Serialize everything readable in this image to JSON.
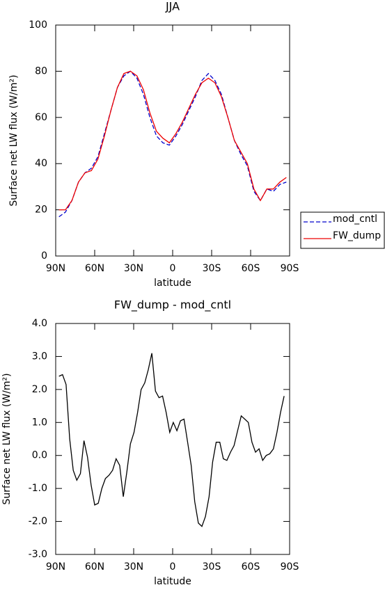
{
  "chart_data": [
    {
      "type": "line",
      "title": "JJA",
      "x_label": "latitude",
      "y_label": "Surface net LW flux (W/m²)",
      "x": [
        87.5,
        82.5,
        77.5,
        72.5,
        67.5,
        62.5,
        57.5,
        52.5,
        47.5,
        42.5,
        37.5,
        32.5,
        27.5,
        22.5,
        17.5,
        12.5,
        7.5,
        2.5,
        -2.5,
        -7.5,
        -12.5,
        -17.5,
        -22.5,
        -27.5,
        -32.5,
        -37.5,
        -42.5,
        -47.5,
        -52.5,
        -57.5,
        -62.5,
        -67.5,
        -72.5,
        -77.5,
        -82.5,
        -87.5
      ],
      "series": [
        {
          "name": "mod_cntl",
          "color": "#0000cc",
          "dashed": true,
          "values": [
            17,
            19,
            24,
            32,
            36,
            38,
            43,
            53,
            63,
            73,
            78,
            80,
            77,
            70,
            60,
            52,
            49,
            48,
            52,
            57,
            63,
            69,
            76,
            79,
            76,
            70,
            60,
            50,
            44,
            39,
            28,
            24,
            29,
            28,
            31,
            32
          ]
        },
        {
          "name": "FW_dump",
          "color": "#ee0000",
          "dashed": false,
          "values": [
            20,
            20,
            24,
            32,
            36,
            37,
            42,
            52,
            63,
            73,
            79,
            80,
            78,
            72,
            62,
            54,
            51,
            49,
            53,
            58,
            64,
            70,
            75,
            77,
            75,
            69,
            60,
            50,
            45,
            40,
            29,
            24,
            29,
            29,
            32,
            34
          ]
        }
      ],
      "xlim": [
        90,
        -90
      ],
      "xticks": [
        {
          "value": 90,
          "label": "90N"
        },
        {
          "value": 60,
          "label": "60N"
        },
        {
          "value": 30,
          "label": "30N"
        },
        0,
        {
          "value": -30,
          "label": "30S"
        },
        {
          "value": -60,
          "label": "60S"
        },
        {
          "value": -90,
          "label": "90S"
        }
      ],
      "ylim": [
        0,
        100
      ],
      "yticks": [
        0,
        20,
        40,
        60,
        80,
        100
      ],
      "legend": "right"
    },
    {
      "type": "line",
      "title": "FW_dump - mod_cntl",
      "x_label": "latitude",
      "y_label": "Surface net LW flux (W/m²)",
      "x": [
        87.5,
        84.75,
        82,
        79.25,
        76.5,
        73.75,
        71,
        68.25,
        65.5,
        62.75,
        60,
        57.25,
        54.5,
        51.75,
        49,
        46.25,
        43.5,
        40.75,
        38,
        35.25,
        32.5,
        29.75,
        27,
        24.25,
        21.5,
        18.75,
        16,
        13.25,
        10.5,
        7.75,
        5,
        2.25,
        -0.5,
        -3.25,
        -6,
        -8.75,
        -11.5,
        -14.25,
        -17,
        -19.75,
        -22.5,
        -25.25,
        -28,
        -30.75,
        -33.5,
        -36.25,
        -39,
        -41.75,
        -44.5,
        -47.25,
        -50,
        -52.75,
        -55.5,
        -58.25,
        -61,
        -63.75,
        -66.5,
        -69.25,
        -72,
        -74.75,
        -77.5,
        -80.25,
        -83,
        -85.75
      ],
      "series": [
        {
          "color": "#000000",
          "dashed": false,
          "values": [
            2.4,
            2.45,
            2.15,
            0.5,
            -0.45,
            -0.75,
            -0.55,
            0.45,
            -0.05,
            -0.9,
            -1.5,
            -1.45,
            -1.0,
            -0.7,
            -0.6,
            -0.45,
            -0.1,
            -0.3,
            -1.25,
            -0.5,
            0.35,
            0.7,
            1.3,
            2.0,
            2.2,
            2.6,
            3.1,
            1.95,
            1.75,
            1.8,
            1.3,
            0.7,
            1.0,
            0.75,
            1.05,
            1.1,
            0.4,
            -0.3,
            -1.4,
            -2.05,
            -2.15,
            -1.85,
            -1.25,
            -0.2,
            0.4,
            0.4,
            -0.1,
            -0.15,
            0.1,
            0.3,
            0.75,
            1.2,
            1.1,
            1.0,
            0.4,
            0.1,
            0.2,
            -0.15,
            0.0,
            0.05,
            0.2,
            0.7,
            1.3,
            1.8
          ]
        }
      ],
      "xlim": [
        90,
        -90
      ],
      "xticks": [
        {
          "value": 90,
          "label": "90N"
        },
        {
          "value": 60,
          "label": "60N"
        },
        {
          "value": 30,
          "label": "30N"
        },
        0,
        {
          "value": -30,
          "label": "30S"
        },
        {
          "value": -60,
          "label": "60S"
        },
        {
          "value": -90,
          "label": "90S"
        }
      ],
      "ylim": [
        -3,
        4
      ],
      "yticks": [
        {
          "value": -3,
          "label": "-3.0"
        },
        {
          "value": -2,
          "label": "-2.0"
        },
        {
          "value": -1,
          "label": "-1.0"
        },
        {
          "value": 0,
          "label": "0.0"
        },
        {
          "value": 1,
          "label": "1.0"
        },
        {
          "value": 2,
          "label": "2.0"
        },
        {
          "value": 3,
          "label": "3.0"
        },
        {
          "value": 4,
          "label": "4.0"
        }
      ]
    }
  ]
}
